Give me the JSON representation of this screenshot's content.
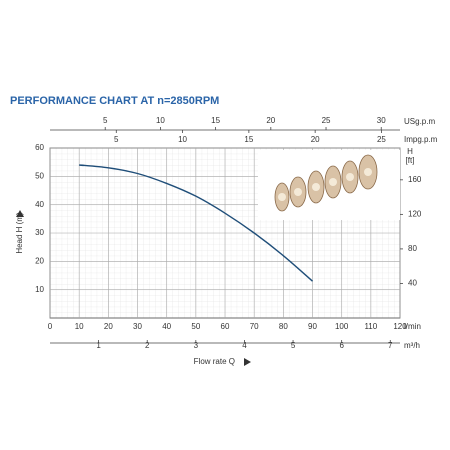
{
  "chart_data": {
    "type": "line",
    "title": "PERFORMANCE CHART AT n=2850RPM",
    "y_label": "Head H (m)",
    "y2_label": [
      "H",
      "[ft]"
    ],
    "x_label": "Flow rate Q",
    "x_unit": "l/min",
    "x": [
      10,
      20,
      30,
      40,
      50,
      60,
      70,
      80,
      90
    ],
    "values": [
      54,
      53,
      51,
      47.5,
      43,
      37,
      30,
      22,
      13
    ],
    "color": "#1f4e79",
    "xlim": [
      0,
      120
    ],
    "xticks": [
      0,
      10,
      20,
      30,
      40,
      50,
      60,
      70,
      80,
      90,
      100,
      110,
      120
    ],
    "x2_unit": "m³/h",
    "x2lim": [
      0,
      7.2
    ],
    "x2ticks": [
      1,
      2,
      3,
      4,
      5,
      6,
      7
    ],
    "x3_unit": "USg.p.m",
    "x3lim": [
      0,
      31.7
    ],
    "x3ticks": [
      5,
      10,
      15,
      20,
      25,
      30
    ],
    "x4_unit": "Impg.p.m",
    "x4lim": [
      0,
      26.4
    ],
    "x4ticks": [
      5,
      10,
      15,
      20,
      25
    ],
    "ylim": [
      0,
      60
    ],
    "yticks": [
      10,
      20,
      30,
      40,
      50,
      60
    ],
    "y2lim": [
      0,
      196.85
    ],
    "y2ticks": [
      40,
      80,
      120,
      160
    ],
    "grid": true
  }
}
